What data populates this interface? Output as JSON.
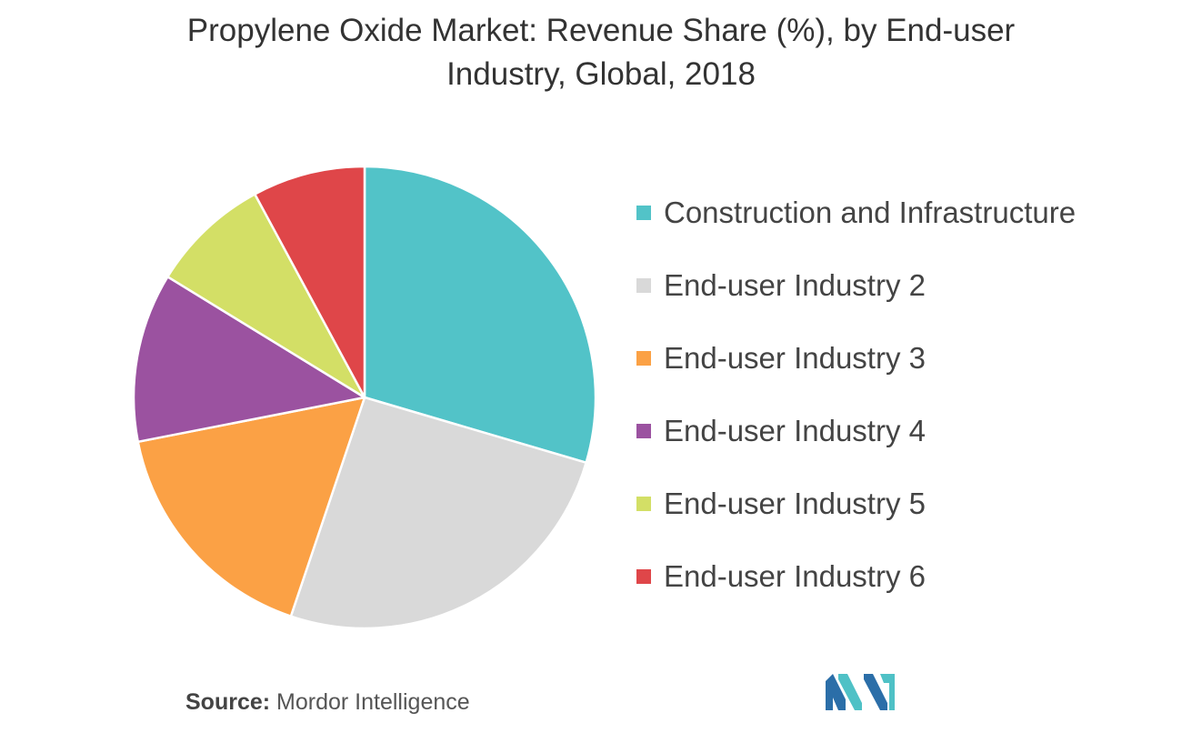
{
  "chart_data": {
    "type": "pie",
    "title_lines": [
      "Propylene Oxide Market: Revenue Share (%), by End-user",
      "Industry, Global, 2018"
    ],
    "slices": [
      {
        "label": "Construction and Infrastructure",
        "value": 30,
        "color": "#52c3c8"
      },
      {
        "label": "End-user Industry 2",
        "value": 26,
        "color": "#d9d9d9"
      },
      {
        "label": "End-user Industry 3",
        "value": 17,
        "color": "#fba145"
      },
      {
        "label": "End-user Industry 4",
        "value": 12,
        "color": "#9b52a0"
      },
      {
        "label": "End-user Industry 5",
        "value": 8.5,
        "color": "#d3df66"
      },
      {
        "label": "End-user Industry 6",
        "value": 8,
        "color": "#df4649"
      }
    ],
    "legend_position": "right"
  },
  "source": {
    "prefix": "Source:",
    "name": "Mordor Intelligence"
  },
  "logo": {
    "icon": "mordor-intelligence-logo-icon",
    "colors": [
      "#2b6ea8",
      "#4fc1c6"
    ]
  }
}
